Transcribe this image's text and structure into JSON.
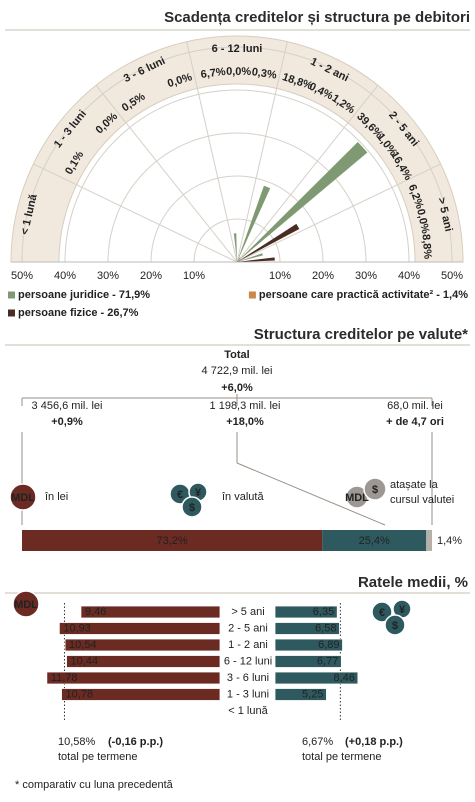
{
  "chart_data": [
    {
      "type": "rose",
      "title": "Scadența creditelor și structura pe debitori",
      "categories": [
        "< 1 lună",
        "1 - 3 luni",
        "3 - 6 luni",
        "6 - 12 luni",
        "1 - 2 ani",
        "2 - 5 ani",
        "> 5 ani"
      ],
      "series": [
        {
          "name": "persoane juridice - 71,9%",
          "color": "#7f9a72",
          "values": [
            null,
            0.1,
            0.5,
            6.7,
            18.8,
            39.6,
            6.2
          ],
          "value_labels": [
            null,
            "0,1%",
            "0,5%",
            "6,7%",
            "18,8%",
            "39,6%",
            "6,2%"
          ]
        },
        {
          "name": "persoane care practică activitate² - 1,4%",
          "color": "#c8894a",
          "values": [
            null,
            null,
            null,
            0.0,
            0.4,
            1.0,
            0.0
          ],
          "value_labels": [
            null,
            null,
            null,
            "0,0%",
            "0,4%",
            "1,0%",
            "0,0%"
          ]
        },
        {
          "name": "persoane fizice - 26,7%",
          "color": "#4a2c22",
          "values": [
            null,
            0.0,
            0.0,
            0.3,
            1.2,
            16.4,
            8.8
          ],
          "value_labels": [
            null,
            "0,0%",
            "0,0%",
            "0,3%",
            "1,2%",
            "16,4%",
            "8,8%"
          ]
        }
      ],
      "rlim": [
        0,
        50
      ],
      "rticks": [
        {
          "value": 10,
          "label": "10%"
        },
        {
          "value": 20,
          "label": "20%"
        },
        {
          "value": 30,
          "label": "30%"
        },
        {
          "value": 40,
          "label": "40%"
        },
        {
          "value": 50,
          "label": "50%"
        }
      ],
      "grid": true
    },
    {
      "type": "stacked_bar",
      "title": "Structura creditelor pe valute*",
      "values": [
        73.2,
        25.4,
        1.4
      ],
      "value_labels": [
        "73,2%",
        "25,4%",
        "1,4%"
      ],
      "colors": [
        "#6b2a22",
        "#2e5a5f",
        "#b5b0aa"
      ]
    },
    {
      "type": "butterfly",
      "title": "Ratele medii, %",
      "categories": [
        "> 5 ani",
        "2 - 5 ani",
        "1 - 2 ani",
        "6 - 12 luni",
        "3 - 6 luni",
        "1 - 3 luni",
        "< 1 lună"
      ],
      "series": [
        {
          "name": "MDL",
          "color": "#6b2a22",
          "values": [
            9.46,
            10.93,
            10.54,
            10.44,
            11.78,
            10.78,
            null
          ],
          "value_labels": [
            "9,46",
            "10,93",
            "10,54",
            "10,44",
            "11,78",
            "10,78",
            null
          ],
          "total": {
            "value": 10.58,
            "label": "10,58%"
          },
          "change": "(-0,16 p.p.)",
          "total_label": "total pe termene"
        },
        {
          "color": "#2e5a5f",
          "values": [
            6.35,
            6.58,
            6.89,
            6.77,
            8.46,
            5.25,
            null
          ],
          "value_labels": [
            "6,35",
            "6,58",
            "6,89",
            "6,77",
            "8,46",
            "5,25",
            null
          ],
          "total": {
            "value": 6.67,
            "label": "6,67%"
          },
          "change": "(+0,18 p.p.)",
          "total_label": "total pe termene"
        }
      ]
    }
  ],
  "currency_structure": {
    "total": {
      "label": "Total",
      "amount": "4 722,9 mil. lei",
      "change": "+6,0%"
    },
    "branches": [
      {
        "amount": "3 456,6 mil. lei",
        "change": "+0,9%",
        "label": [
          "în lei"
        ]
      },
      {
        "amount": "1 198,3 mil. lei",
        "change": "+18,0%",
        "label": [
          "în valută"
        ]
      },
      {
        "amount": "68,0 mil. lei",
        "change": "+ de 4,7 ori",
        "label": [
          "atașate la",
          "cursul valutei"
        ]
      }
    ]
  },
  "icons": {
    "mdl": "MDL",
    "currency": [
      "€",
      "¥",
      "$"
    ]
  },
  "footnote": "* comparativ cu luna precedentă"
}
